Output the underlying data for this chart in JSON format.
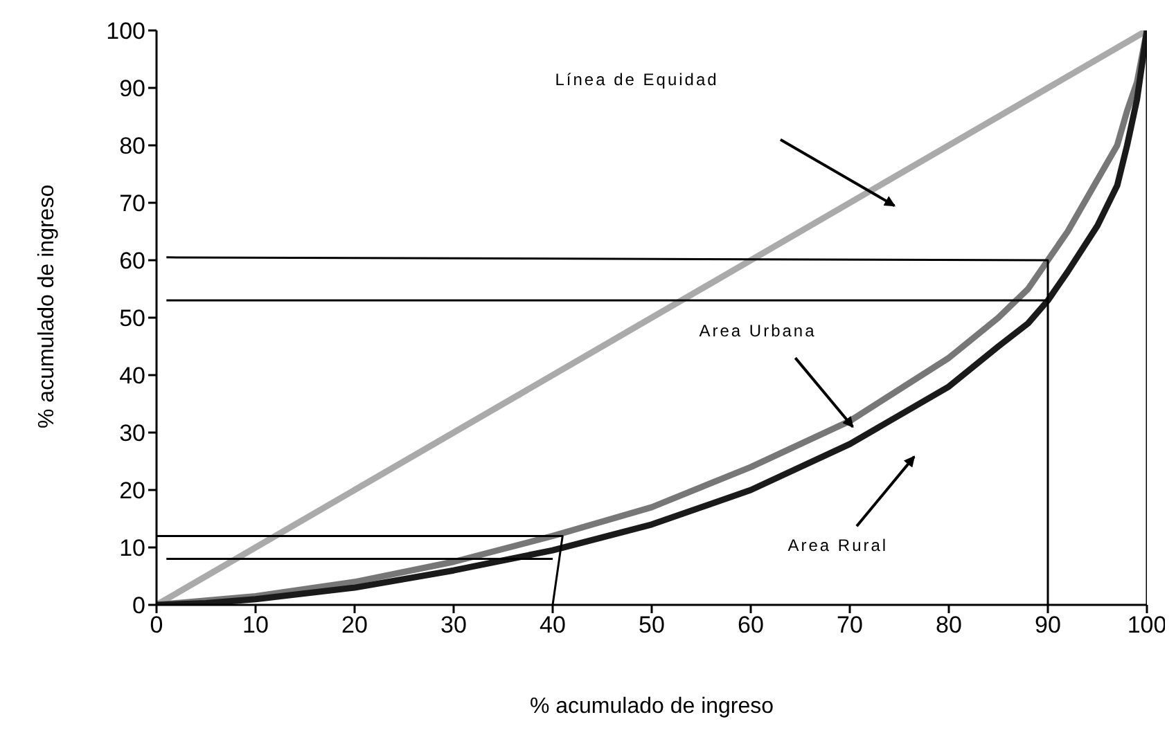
{
  "chart_data": {
    "type": "line",
    "xlabel": "% acumulado de ingreso",
    "ylabel": "% acumulado de ingreso",
    "xlim": [
      0,
      100
    ],
    "ylim": [
      0,
      100
    ],
    "xticks": [
      0,
      10,
      20,
      30,
      40,
      50,
      60,
      70,
      80,
      90,
      100
    ],
    "yticks": [
      0,
      10,
      20,
      30,
      40,
      50,
      60,
      70,
      80,
      90,
      100
    ],
    "grid": false,
    "legend": false,
    "marker": "none",
    "series": [
      {
        "color": "#aaaaaa",
        "x": [
          0,
          100
        ],
        "values": [
          0,
          100
        ]
      },
      {
        "color": "#777777",
        "x": [
          0,
          10,
          20,
          30,
          40,
          50,
          60,
          70,
          80,
          85,
          88,
          90,
          92,
          95,
          97,
          98,
          99,
          100
        ],
        "values": [
          0,
          1.5,
          4,
          7.5,
          12,
          17,
          24,
          32,
          43,
          50,
          55,
          60,
          65,
          74,
          80,
          86,
          91,
          100
        ]
      },
      {
        "color": "#1a1a1a",
        "x": [
          0,
          5,
          10,
          20,
          30,
          40,
          50,
          60,
          70,
          80,
          85,
          88,
          90,
          92,
          95,
          97,
          98,
          99,
          100
        ],
        "values": [
          0,
          0.3,
          1,
          3,
          6,
          9.5,
          14,
          20,
          28,
          38,
          45,
          49,
          53,
          58,
          66,
          73,
          80,
          88,
          100
        ]
      },
      {
        "color": "#000000",
        "x": [
          1,
          90,
          90
        ],
        "values": [
          60.5,
          60,
          0
        ]
      },
      {
        "color": "#000000",
        "x": [
          1,
          90
        ],
        "values": [
          53,
          53
        ]
      },
      {
        "color": "#000000",
        "x": [
          0,
          41,
          40
        ],
        "values": [
          12,
          12,
          0
        ]
      },
      {
        "color": "#000000",
        "x": [
          1,
          40
        ],
        "values": [
          8,
          8
        ]
      },
      {
        "color": "#000000",
        "x": [
          100,
          100
        ],
        "values": [
          0,
          100
        ]
      }
    ],
    "annotations": [
      "Línea de Equidad",
      {
        "text": "Area Urbana",
        "x": 70.3,
        "y": 31
      },
      "Area Rural"
    ]
  }
}
